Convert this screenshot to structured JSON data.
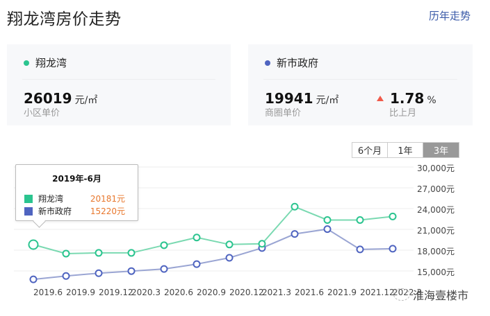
{
  "header": {
    "title": "翔龙湾房价走势",
    "history_link": "历年走势"
  },
  "cards": {
    "left": {
      "name": "翔龙湾",
      "dot_color": "#2bc48f",
      "price": "26019",
      "unit": "元/㎡",
      "label": "小区单价"
    },
    "right": {
      "name": "新市政府",
      "dot_color": "#4f64c0",
      "price": "19941",
      "unit": "元/㎡",
      "label": "商圈单价",
      "change": "1.78",
      "change_unit": "%",
      "change_label": "比上月",
      "change_direction": "up",
      "change_color": "#f05a4a"
    }
  },
  "range_tabs": [
    {
      "label": "6个月",
      "active": false
    },
    {
      "label": "1年",
      "active": false
    },
    {
      "label": "3年",
      "active": true
    }
  ],
  "tooltip": {
    "title": "2019年-6月",
    "rows": [
      {
        "name": "翔龙湾",
        "value": "20181元",
        "color": "#2bc48f"
      },
      {
        "name": "新市政府",
        "value": "15220元",
        "color": "#4f64c0"
      }
    ]
  },
  "watermark": "淮海壹楼市",
  "chart_data": {
    "type": "line",
    "title": "翔龙湾房价走势",
    "xlabel": "",
    "ylabel": "",
    "x": [
      "2019.6",
      "2019.9",
      "2019.12",
      "2020.3",
      "2020.6",
      "2020.9",
      "2020.12",
      "2021.3",
      "2021.6",
      "2021.9",
      "2021.12",
      "2022.3"
    ],
    "series": [
      {
        "name": "翔龙湾",
        "color": "#2bc48f",
        "values": [
          20181,
          18900,
          19000,
          19000,
          20100,
          21200,
          20200,
          20300,
          25600,
          23700,
          23700,
          24200
        ]
      },
      {
        "name": "新市政府",
        "color": "#4f64c0",
        "values": [
          15220,
          15700,
          16100,
          16400,
          16700,
          17400,
          18300,
          19700,
          21700,
          22400,
          19500,
          19600
        ]
      }
    ],
    "y_ticks": [
      "15,000元",
      "18,000元",
      "21,000元",
      "24,000元",
      "27,000元",
      "30,000元"
    ],
    "ylim": [
      15000,
      30000
    ],
    "grid": true,
    "legend_position": "none"
  }
}
